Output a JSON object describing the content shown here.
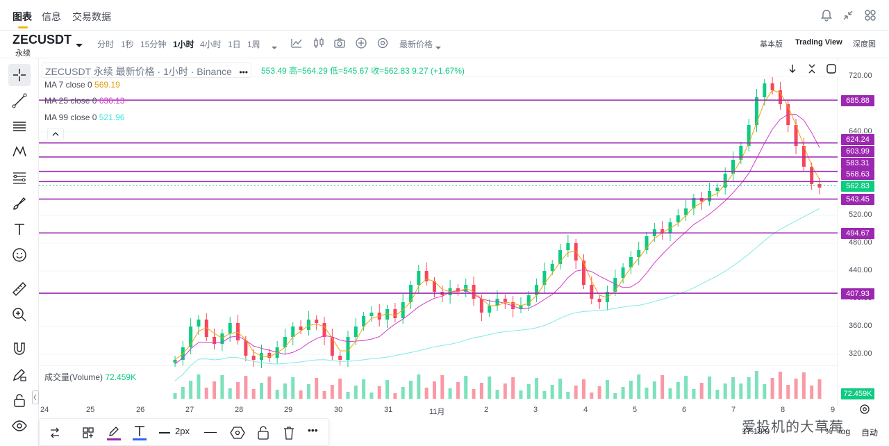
{
  "tabs": [
    {
      "label": "图表",
      "active": true
    },
    {
      "label": "信息",
      "active": false
    },
    {
      "label": "交易数据",
      "active": false
    }
  ],
  "top_icons": [
    "bell-icon",
    "collapse-icon",
    "grid-icon"
  ],
  "symbol": {
    "name": "ZECUSDT",
    "subtitle": "永续"
  },
  "timeframes": [
    {
      "label": "分时",
      "active": false
    },
    {
      "label": "1秒",
      "active": false
    },
    {
      "label": "15分钟",
      "active": false
    },
    {
      "label": "1小时",
      "active": true
    },
    {
      "label": "4小时",
      "active": false
    },
    {
      "label": "1日",
      "active": false
    },
    {
      "label": "1周",
      "active": false
    }
  ],
  "price_type": "最新价格",
  "views": [
    {
      "label": "基本版",
      "active": false
    },
    {
      "label": "Trading View",
      "active": true
    },
    {
      "label": "深度图",
      "active": false
    }
  ],
  "legend": {
    "header": "ZECUSDT 永续 最新价格 · 1小时 · Binance",
    "ohlc": "553.49 高=564.29 低=545.67 收=562.83 9.27 (+1.67%)",
    "ma7_label": "MA 7 close 0",
    "ma7_value": "569.19",
    "ma25_label": "MA 25 close 0",
    "ma25_value": "636.13",
    "ma99_label": "MA 99 close 0",
    "ma99_value": "521.96",
    "volume_label": "成交量(Volume)",
    "volume_value": "72.459K"
  },
  "colors": {
    "up": "#0ecb81",
    "down": "#f6465d",
    "hline": "#9c27b0",
    "ma7": "#f0a30a",
    "ma25": "#d43ac9",
    "ma99": "#7eeae5",
    "accent": "#f0b90b"
  },
  "price_axis": [
    "720.00",
    "640.00",
    "520.00",
    "480.00",
    "440.00",
    "400.00",
    "360.00",
    "320.00"
  ],
  "price_tags": [
    {
      "value": "685.88",
      "color": "#9c27b0"
    },
    {
      "value": "624.24",
      "color": "#9c27b0"
    },
    {
      "value": "603.99",
      "color": "#9c27b0"
    },
    {
      "value": "583.31",
      "color": "#9c27b0"
    },
    {
      "value": "568.63",
      "color": "#9c27b0"
    },
    {
      "value": "562.83",
      "color": "#0ecb81"
    },
    {
      "value": "543.45",
      "color": "#9c27b0"
    },
    {
      "value": "494.67",
      "color": "#9c27b0"
    },
    {
      "value": "407.93",
      "color": "#9c27b0"
    }
  ],
  "volume_tag": "72.459K",
  "time_axis": [
    "24",
    "25",
    "26",
    "27",
    "28",
    "29",
    "30",
    "31",
    "11月",
    "2",
    "3",
    "4",
    "5",
    "6",
    "7",
    "8",
    "9"
  ],
  "draw_bar": {
    "width_label": "2px"
  },
  "watermark": "爱投机的大草莓",
  "bottom_right": [
    "17:18:0",
    "%",
    "log",
    "自动"
  ],
  "chart_data": {
    "type": "candlestick",
    "symbol": "ZECUSDT",
    "interval": "1h",
    "ylim": [
      310,
      740
    ],
    "horizontal_levels": [
      685.88,
      624.24,
      603.99,
      583.31,
      568.63,
      543.45,
      494.67,
      407.93
    ],
    "last_price": 562.83,
    "ma": {
      "ma7": 569.19,
      "ma25": 636.13,
      "ma99": 521.96
    },
    "volume_last": "72.459K",
    "x_labels": [
      "24",
      "25",
      "26",
      "27",
      "28",
      "29",
      "30",
      "31",
      "11月",
      "2",
      "3",
      "4",
      "5",
      "6",
      "7",
      "8",
      "9"
    ],
    "path_closes": [
      312,
      330,
      360,
      370,
      345,
      335,
      350,
      365,
      340,
      318,
      312,
      322,
      315,
      330,
      345,
      360,
      355,
      370,
      365,
      345,
      318,
      312,
      345,
      360,
      375,
      380,
      370,
      385,
      372,
      395,
      420,
      440,
      425,
      410,
      405,
      415,
      410,
      420,
      400,
      380,
      390,
      400,
      395,
      385,
      390,
      405,
      420,
      440,
      450,
      470,
      480,
      455,
      420,
      400,
      395,
      410,
      430,
      445,
      460,
      470,
      490,
      500,
      495,
      510,
      520,
      530,
      545,
      540,
      555,
      560,
      580,
      600,
      620,
      650,
      690,
      710,
      700,
      680,
      650,
      620,
      590,
      565,
      560
    ]
  }
}
